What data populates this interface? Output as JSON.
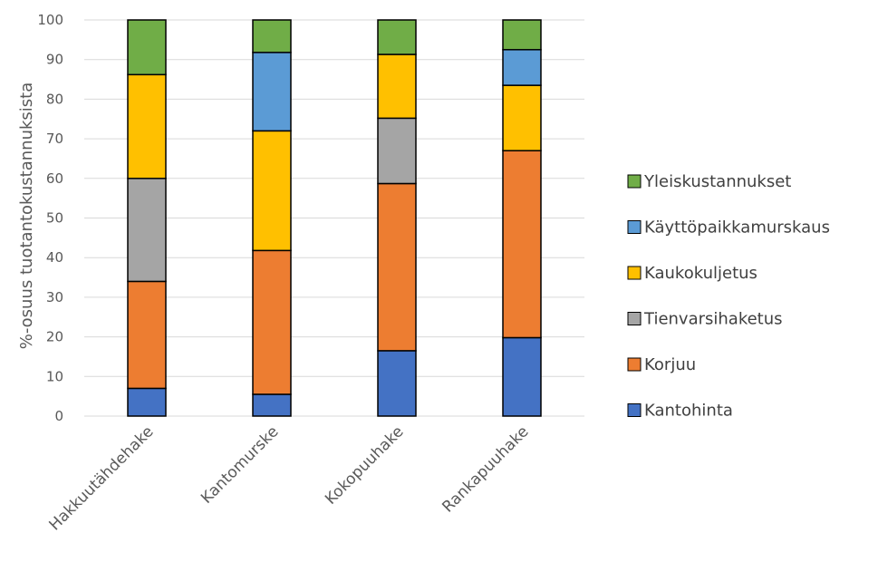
{
  "chart_data": {
    "type": "bar",
    "stacked": true,
    "title": "",
    "xlabel": "",
    "ylabel": "%-osuus tuotantokustannuksista",
    "ylim": [
      0,
      100
    ],
    "yticks": [
      "0",
      "10",
      "20",
      "30",
      "40",
      "50",
      "60",
      "70",
      "80",
      "90",
      "100"
    ],
    "grid": true,
    "legend_position": "right",
    "categories": [
      "Hakkuutähdehake",
      "Kantomurske",
      "Kokopuuhake",
      "Rankapuuhake"
    ],
    "series": [
      {
        "name": "Kantohinta",
        "color": "#4472C4",
        "values": [
          7,
          5.5,
          16.5,
          19.8
        ]
      },
      {
        "name": "Korjuu",
        "color": "#ED7D31",
        "values": [
          27,
          36.3,
          42.2,
          47.2
        ]
      },
      {
        "name": "Tienvarsihaketus",
        "color": "#A5A5A5",
        "values": [
          26,
          0,
          16.5,
          0
        ]
      },
      {
        "name": "Kaukokuljetus",
        "color": "#FFC000",
        "values": [
          26.2,
          30.2,
          16.1,
          16.5
        ]
      },
      {
        "name": "Käyttöpaikkamurskaus",
        "color": "#5B9BD5",
        "values": [
          0,
          19.8,
          0,
          9
        ]
      },
      {
        "name": "Yleiskustannukset",
        "color": "#70AD47",
        "values": [
          13.8,
          8.2,
          8.7,
          7.5
        ]
      }
    ]
  }
}
